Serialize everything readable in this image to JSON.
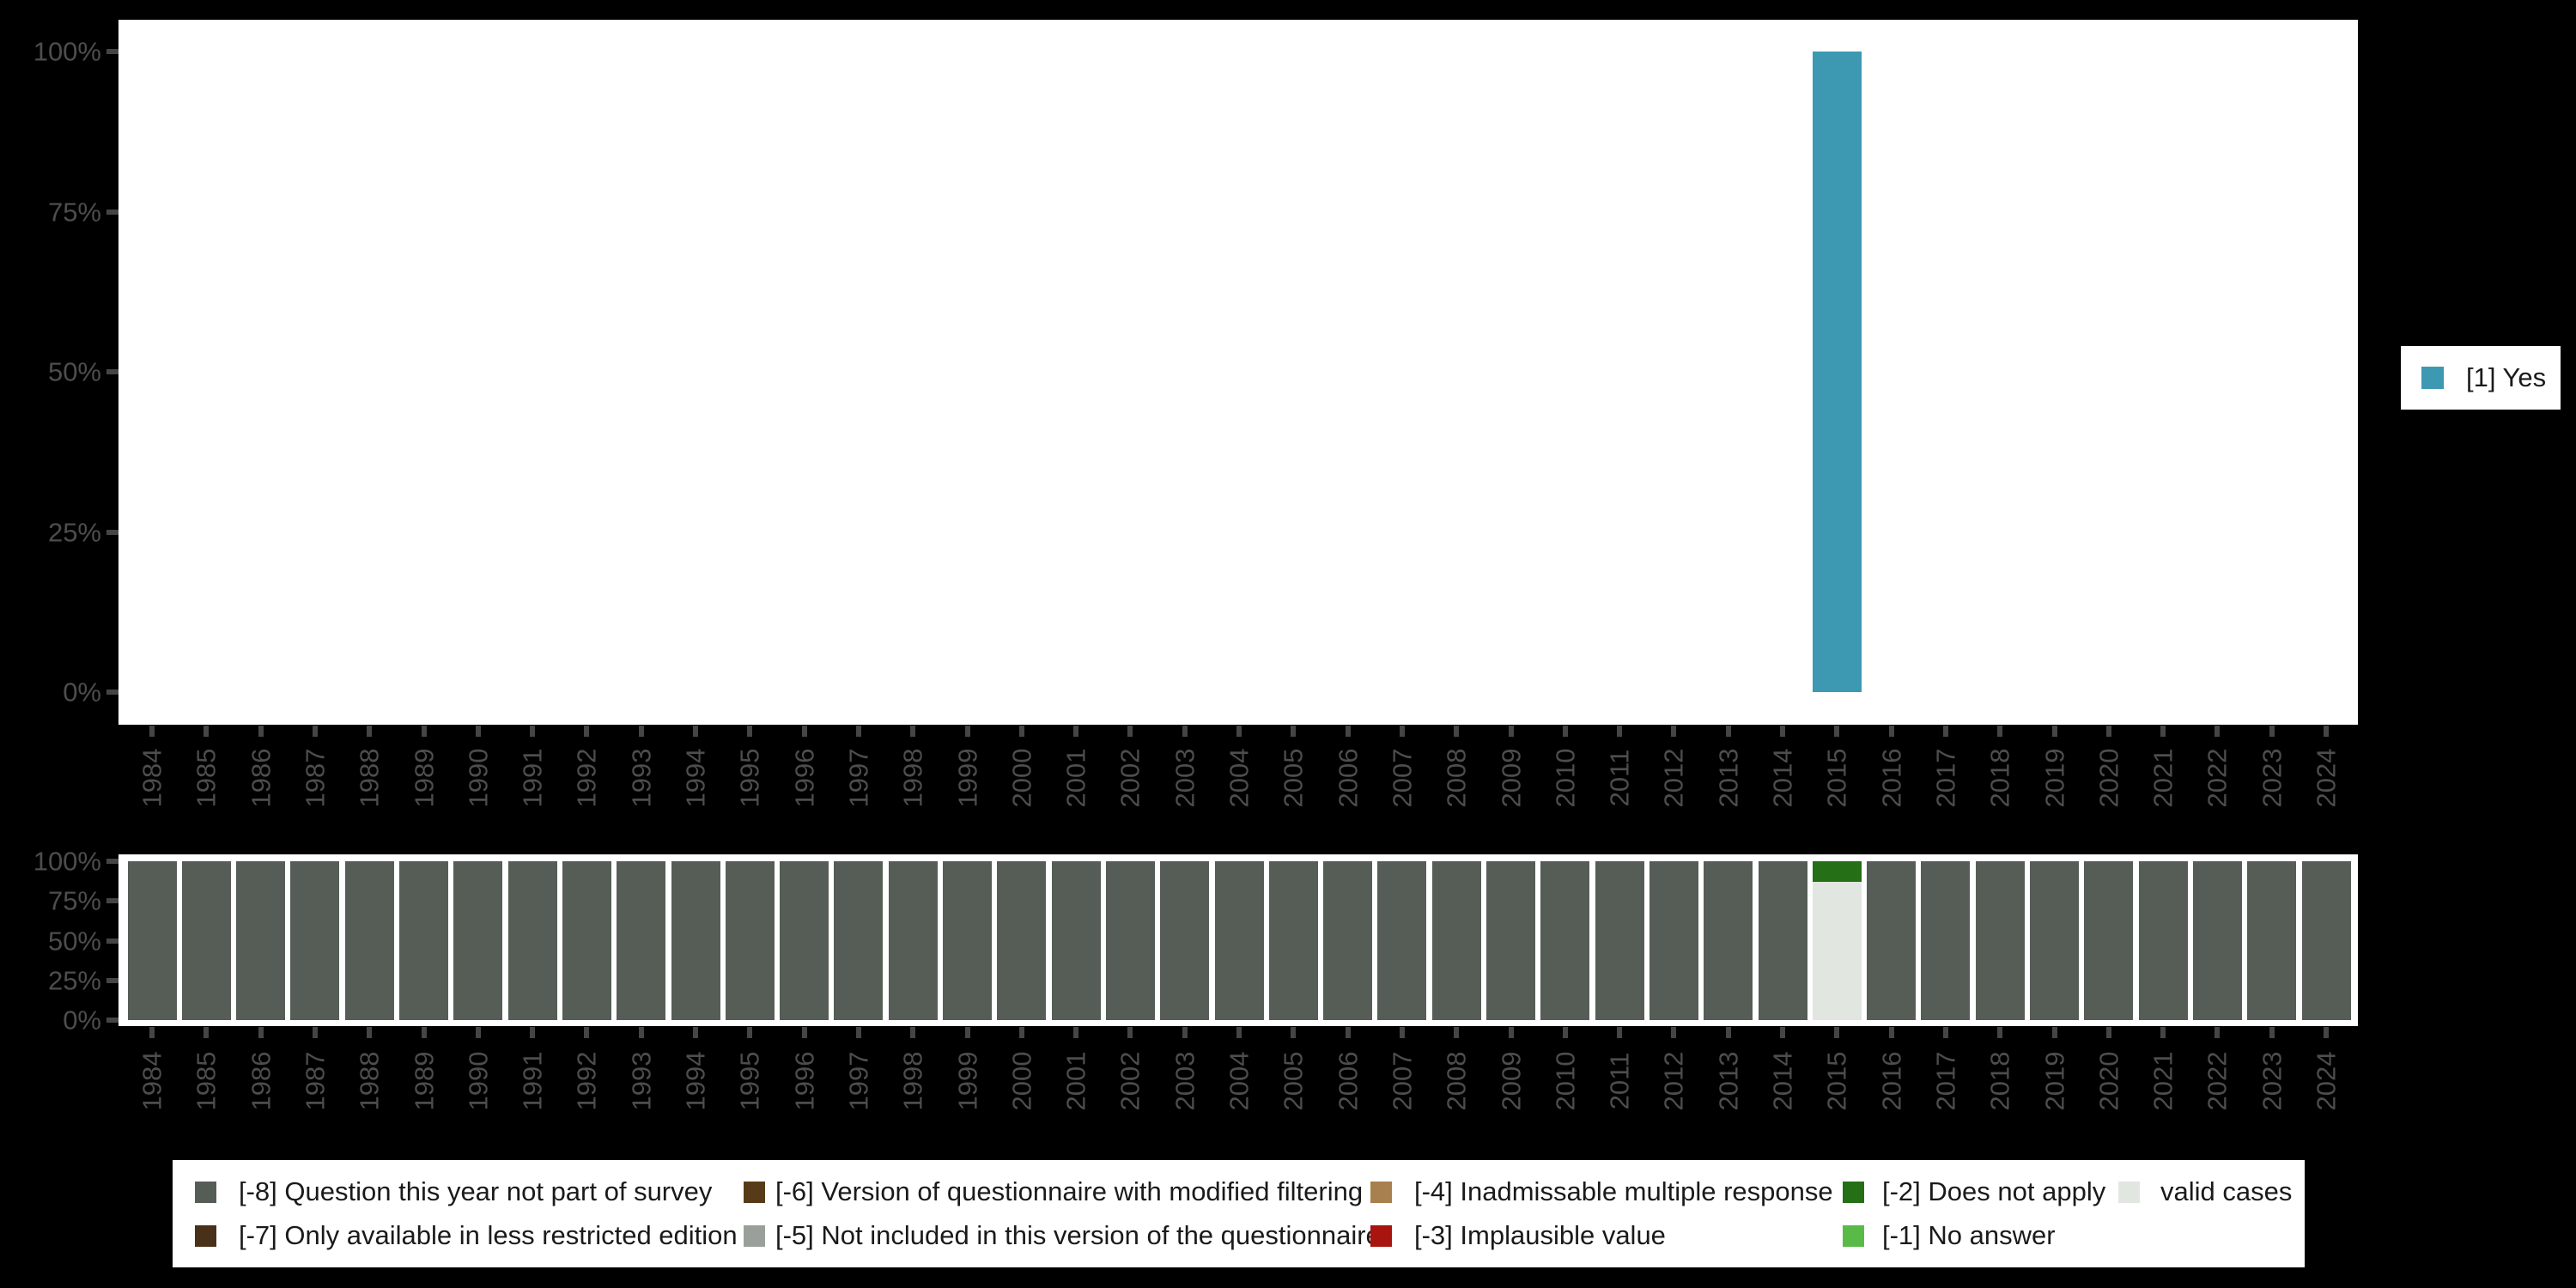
{
  "colors": {
    "background": "#000000",
    "panel": "#ffffff",
    "axis_text": "#4d4d4d",
    "tick": "#454545",
    "legend_box": "#ffffff",
    "legend_text": "#1a1a1a"
  },
  "y_axis": {
    "tick_labels": [
      "0%",
      "25%",
      "50%",
      "75%",
      "100%"
    ]
  },
  "legend_right": {
    "items": [
      {
        "label": "[1] Yes",
        "color": "#3d98b2"
      }
    ]
  },
  "legend_bottom": {
    "items": [
      {
        "label": "[-8] Question this year not part of survey",
        "color": "#565d56"
      },
      {
        "label": "[-7] Only available in less restricted edition",
        "color": "#483019"
      },
      {
        "label": "[-6] Version of questionnaire with modified filtering",
        "color": "#573a17"
      },
      {
        "label": "[-5] Not included in this version of the questionnaire",
        "color": "#9aa099"
      },
      {
        "label": "[-4] Inadmissable multiple response",
        "color": "#a8804f"
      },
      {
        "label": "[-3] Implausible value",
        "color": "#a81410"
      },
      {
        "label": "[-2] Does not apply",
        "color": "#256f17"
      },
      {
        "label": "[-1] No answer",
        "color": "#5aba48"
      },
      {
        "label": "valid cases",
        "color": "#e2e6e0"
      }
    ]
  },
  "chart_data": [
    {
      "type": "bar",
      "title": "",
      "xlabel": "",
      "ylabel": "",
      "grid": false,
      "legend_position": "right",
      "ylim": [
        0,
        100
      ],
      "y_tick_labels": [
        "0%",
        "25%",
        "50%",
        "75%",
        "100%"
      ],
      "x": [
        "1984",
        "1985",
        "1986",
        "1987",
        "1988",
        "1989",
        "1990",
        "1991",
        "1992",
        "1993",
        "1994",
        "1995",
        "1996",
        "1997",
        "1998",
        "1999",
        "2000",
        "2001",
        "2002",
        "2003",
        "2004",
        "2005",
        "2006",
        "2007",
        "2008",
        "2009",
        "2010",
        "2011",
        "2012",
        "2013",
        "2014",
        "2015",
        "2016",
        "2017",
        "2018",
        "2019",
        "2020",
        "2021",
        "2022",
        "2023",
        "2024"
      ],
      "series": [
        {
          "name": "[1] Yes",
          "color": "#3d98b2",
          "values": [
            null,
            null,
            null,
            null,
            null,
            null,
            null,
            null,
            null,
            null,
            null,
            null,
            null,
            null,
            null,
            null,
            null,
            null,
            null,
            null,
            null,
            null,
            null,
            null,
            null,
            null,
            null,
            null,
            null,
            null,
            null,
            100,
            null,
            null,
            null,
            null,
            null,
            null,
            null,
            null,
            null
          ]
        }
      ]
    },
    {
      "type": "stacked-bar-percent",
      "title": "",
      "xlabel": "",
      "ylabel": "",
      "grid": false,
      "legend_position": "bottom",
      "ylim": [
        0,
        100
      ],
      "y_tick_labels": [
        "0%",
        "25%",
        "50%",
        "75%",
        "100%"
      ],
      "x": [
        "1984",
        "1985",
        "1986",
        "1987",
        "1988",
        "1989",
        "1990",
        "1991",
        "1992",
        "1993",
        "1994",
        "1995",
        "1996",
        "1997",
        "1998",
        "1999",
        "2000",
        "2001",
        "2002",
        "2003",
        "2004",
        "2005",
        "2006",
        "2007",
        "2008",
        "2009",
        "2010",
        "2011",
        "2012",
        "2013",
        "2014",
        "2015",
        "2016",
        "2017",
        "2018",
        "2019",
        "2020",
        "2021",
        "2022",
        "2023",
        "2024"
      ],
      "series": [
        {
          "name": "[-8] Question this year not part of survey",
          "color": "#565d56",
          "values": [
            100,
            100,
            100,
            100,
            100,
            100,
            100,
            100,
            100,
            100,
            100,
            100,
            100,
            100,
            100,
            100,
            100,
            100,
            100,
            100,
            100,
            100,
            100,
            100,
            100,
            100,
            100,
            100,
            100,
            100,
            100,
            0,
            100,
            100,
            100,
            100,
            100,
            100,
            100,
            100,
            100
          ]
        },
        {
          "name": "valid cases",
          "color": "#e2e6e0",
          "values": [
            0,
            0,
            0,
            0,
            0,
            0,
            0,
            0,
            0,
            0,
            0,
            0,
            0,
            0,
            0,
            0,
            0,
            0,
            0,
            0,
            0,
            0,
            0,
            0,
            0,
            0,
            0,
            0,
            0,
            0,
            0,
            87,
            0,
            0,
            0,
            0,
            0,
            0,
            0,
            0,
            0
          ]
        },
        {
          "name": "[-2] Does not apply",
          "color": "#256f17",
          "values": [
            0,
            0,
            0,
            0,
            0,
            0,
            0,
            0,
            0,
            0,
            0,
            0,
            0,
            0,
            0,
            0,
            0,
            0,
            0,
            0,
            0,
            0,
            0,
            0,
            0,
            0,
            0,
            0,
            0,
            0,
            0,
            13,
            0,
            0,
            0,
            0,
            0,
            0,
            0,
            0,
            0
          ]
        }
      ],
      "legend_entries": [
        "[-8] Question this year not part of survey",
        "[-7] Only available in less restricted edition",
        "[-6] Version of questionnaire with modified filtering",
        "[-5] Not included in this version of the questionnaire",
        "[-4] Inadmissable multiple response",
        "[-3] Implausible value",
        "[-2] Does not apply",
        "[-1] No answer",
        "valid cases"
      ]
    }
  ]
}
